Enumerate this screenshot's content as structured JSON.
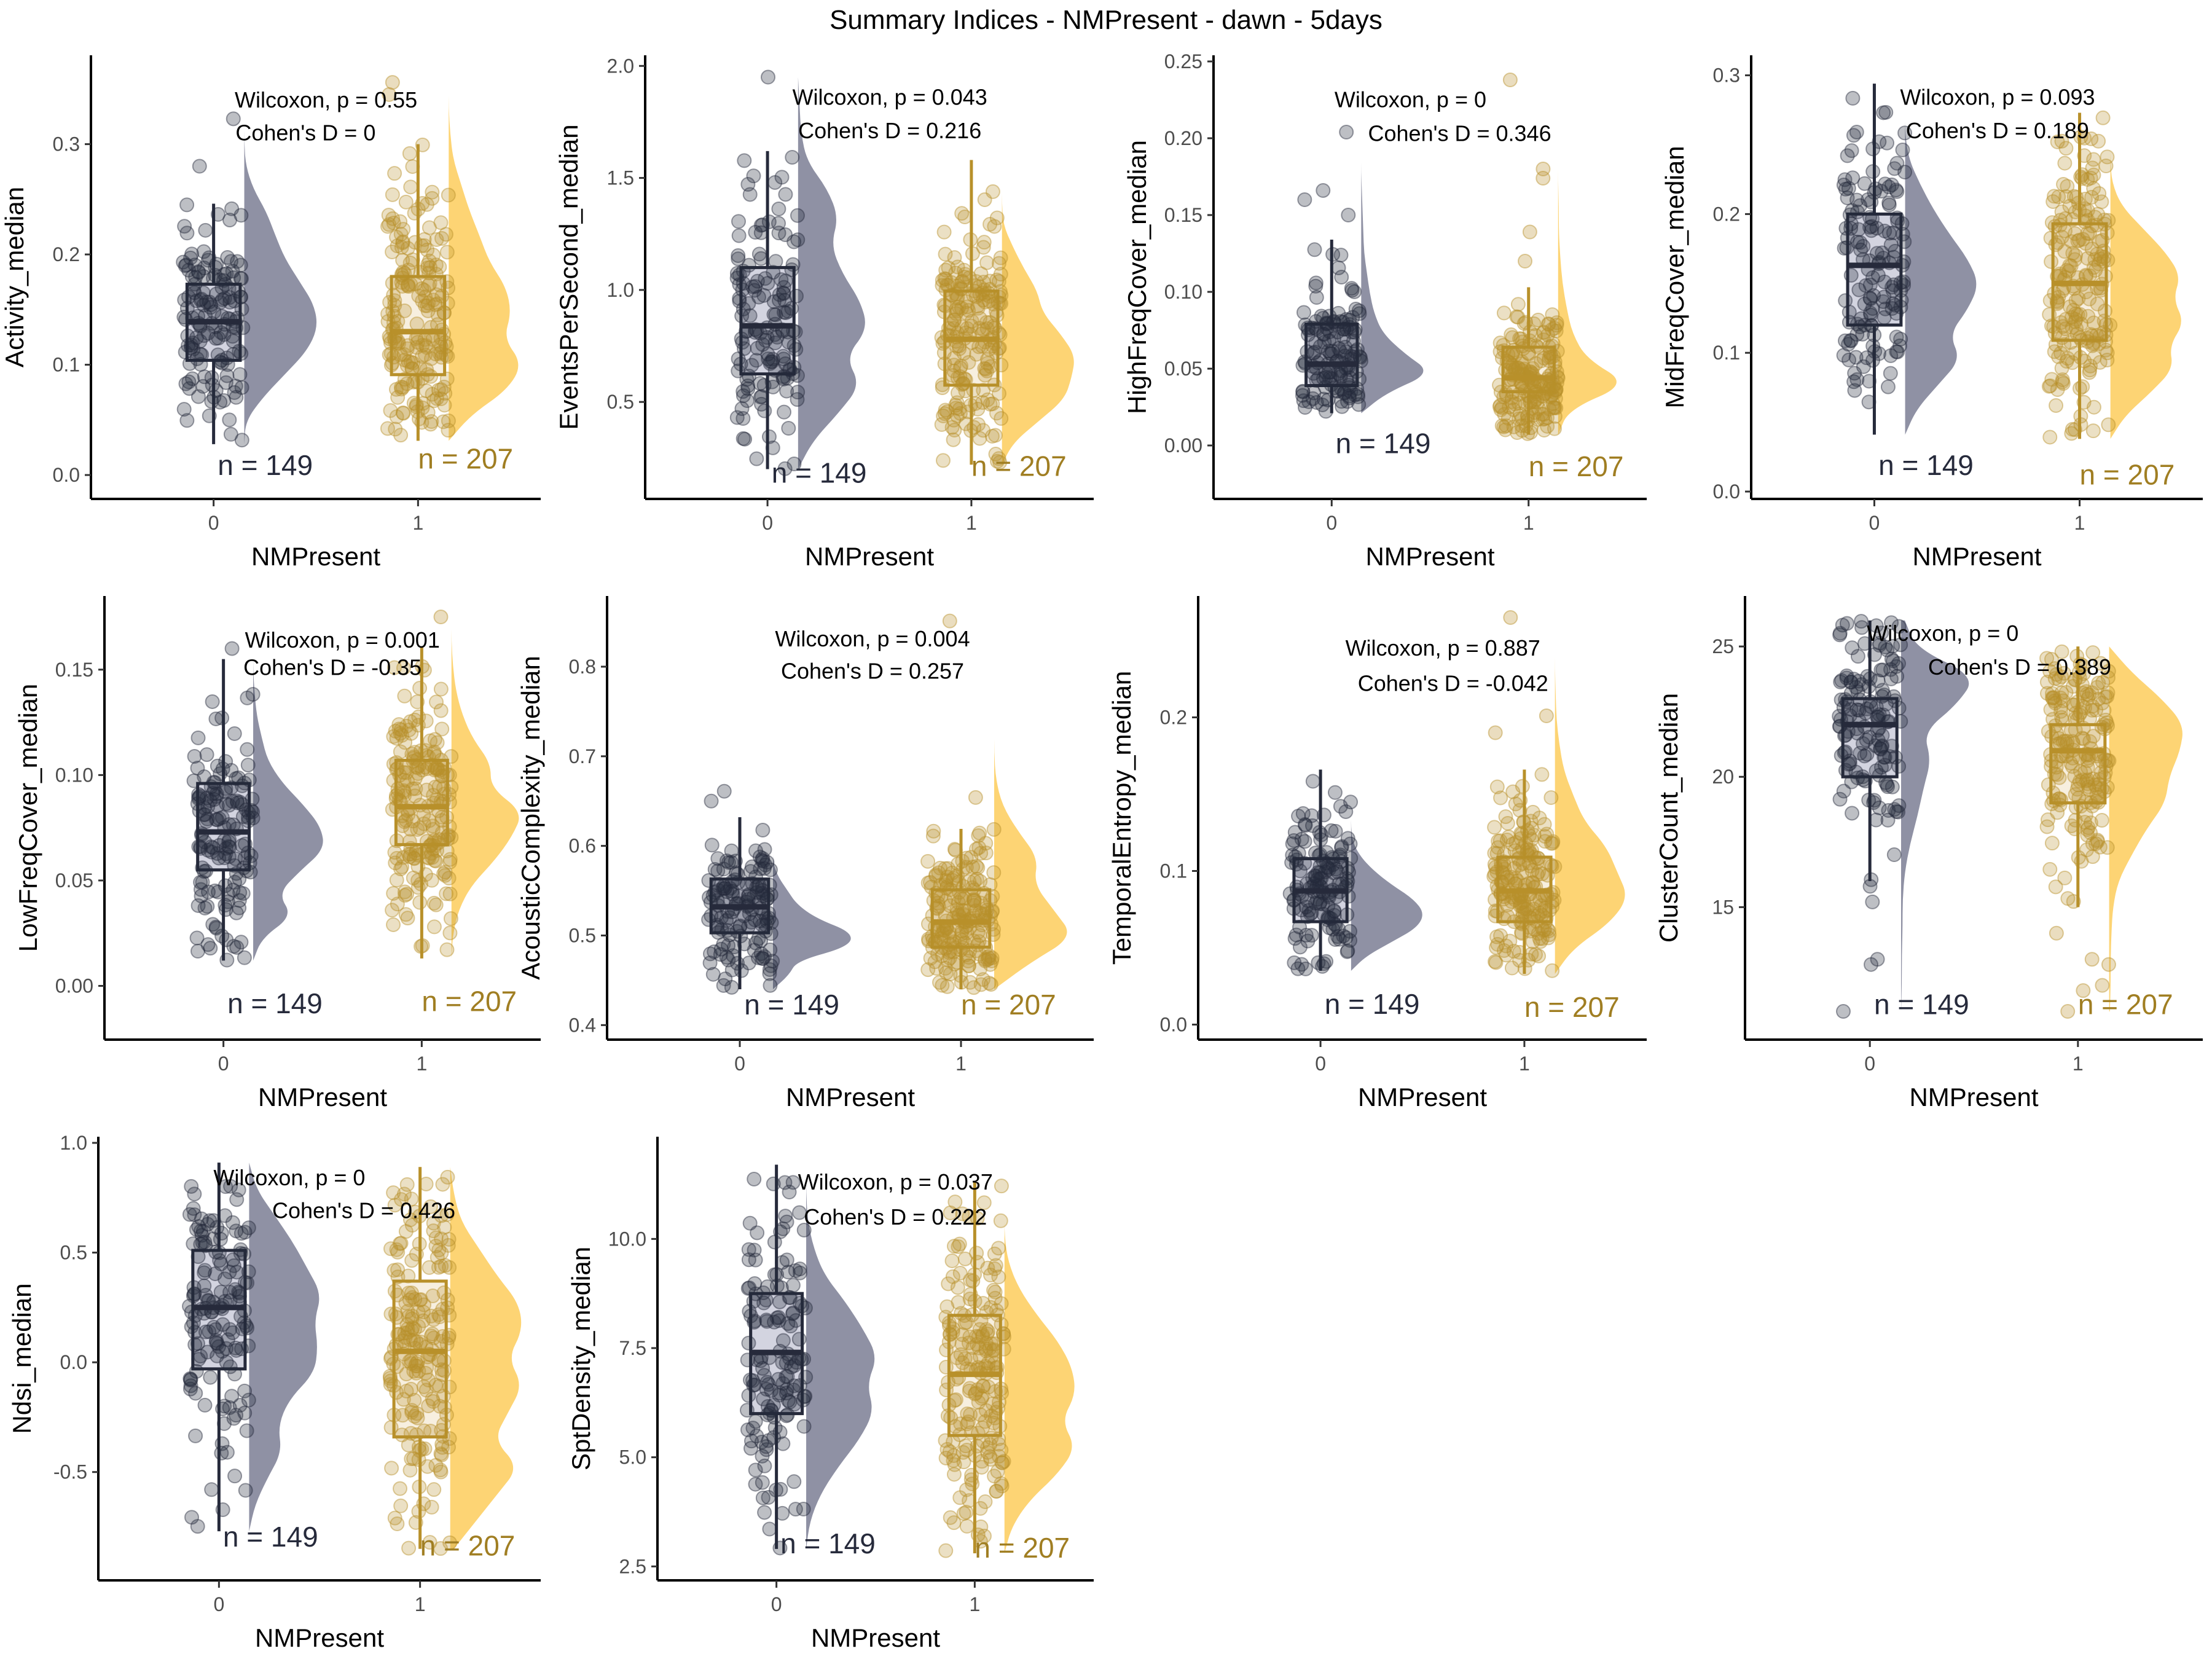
{
  "title": "Summary Indices - NMPresent - dawn - 5days",
  "colors": {
    "group0_line": "#262a3b",
    "group0_box_fill": "#d3d4e0",
    "group0_violin": "#8f91a4",
    "group0_point": "#262a3b",
    "group0_nlabel": "#262a3b",
    "group1_line": "#b8902a",
    "group1_box_fill": "#f7efdf",
    "group1_violin": "#fdd474",
    "group1_point": "#b8902a",
    "group1_nlabel": "#a07e22",
    "axis": "#000000",
    "tick_label": "#4d4d4d"
  },
  "chart_data": [
    {
      "type": "raincloud",
      "ylabel": "Activity_median",
      "xlabel": "NMPresent",
      "categories": [
        "0",
        "1"
      ],
      "ylim": [
        -0.015,
        0.375
      ],
      "yticks": [
        0.0,
        0.1,
        0.2,
        0.3
      ],
      "ytick_labels": [
        "0.0",
        "0.1",
        "0.2",
        "0.3"
      ],
      "wilcoxon_label": "Wilcoxon, p = 0.55",
      "cohens_label": "Cohen's D = 0",
      "annot_y": [
        0.34,
        0.31
      ],
      "annot_x": [
        0.55,
        0.45
      ],
      "groups": [
        {
          "name": "0",
          "n": 149,
          "n_label": "n = 149",
          "n_label_y": 0.0,
          "min": 0.028,
          "q1": 0.104,
          "median": 0.139,
          "q3": 0.173,
          "max": 0.246,
          "outliers": [
            0.28,
            0.323
          ],
          "density": [
            0.0,
            0.02,
            0.25,
            0.55,
            0.85,
            1.0,
            0.95,
            0.75,
            0.55,
            0.42,
            0.3,
            0.12,
            0.02,
            0.0,
            0.0
          ]
        },
        {
          "name": "1",
          "n": 207,
          "n_label": "n = 207",
          "n_label_y": 0.006,
          "min": 0.031,
          "q1": 0.091,
          "median": 0.13,
          "q3": 0.18,
          "max": 0.3,
          "outliers": [
            0.345,
            0.356
          ],
          "density": [
            0.0,
            0.3,
            0.8,
            1.0,
            0.75,
            0.85,
            0.78,
            0.55,
            0.42,
            0.28,
            0.17,
            0.06,
            0.02,
            0.0,
            0.0
          ]
        }
      ]
    },
    {
      "type": "raincloud",
      "ylabel": "EventsPerSecond_median",
      "xlabel": "NMPresent",
      "categories": [
        "0",
        "1"
      ],
      "ylim": [
        0.1,
        2.02
      ],
      "yticks": [
        0.5,
        1.0,
        1.5,
        2.0
      ],
      "ytick_labels": [
        "0.5",
        "1.0",
        "1.5",
        "2.0"
      ],
      "wilcoxon_label": "Wilcoxon, p = 0.043",
      "cohens_label": "Cohen's D = 0.216",
      "annot_y": [
        1.86,
        1.71
      ],
      "annot_x": [
        0.6,
        0.6
      ],
      "groups": [
        {
          "name": "0",
          "n": 149,
          "n_label": "n = 149",
          "n_label_y": 0.14,
          "min": 0.2,
          "q1": 0.625,
          "median": 0.84,
          "q3": 1.1,
          "max": 1.62,
          "outliers": [
            1.95
          ],
          "density": [
            0.0,
            0.2,
            0.55,
            0.85,
            0.65,
            0.95,
            0.85,
            0.6,
            0.45,
            0.55,
            0.4,
            0.12,
            0.04,
            0.02,
            0.0
          ]
        },
        {
          "name": "1",
          "n": 207,
          "n_label": "n = 207",
          "n_label_y": 0.17,
          "min": 0.22,
          "q1": 0.575,
          "median": 0.78,
          "q3": 0.995,
          "max": 1.58,
          "outliers": [],
          "density": [
            0.0,
            0.15,
            0.5,
            0.85,
            0.95,
            1.0,
            0.8,
            0.55,
            0.48,
            0.3,
            0.15,
            0.02,
            0.0,
            0.0,
            0.0
          ]
        }
      ]
    },
    {
      "type": "raincloud",
      "ylabel": "HighFreqCover_median",
      "xlabel": "NMPresent",
      "categories": [
        "0",
        "1"
      ],
      "ylim": [
        -0.03,
        0.25
      ],
      "yticks": [
        0.0,
        0.05,
        0.1,
        0.15,
        0.2,
        0.25
      ],
      "ytick_labels": [
        "0.00",
        "0.05",
        "0.10",
        "0.15",
        "0.20",
        "0.25"
      ],
      "wilcoxon_label": "Wilcoxon, p = 0",
      "cohens_label": "Cohen's D = 0.346",
      "annot_y": [
        0.225,
        0.203
      ],
      "annot_x": [
        0.4,
        0.65
      ],
      "groups": [
        {
          "name": "0",
          "n": 149,
          "n_label": "n = 149",
          "n_label_y": -0.005,
          "min": 0.021,
          "q1": 0.039,
          "median": 0.053,
          "q3": 0.079,
          "max": 0.134,
          "outliers": [
            0.15,
            0.16,
            0.166,
            0.204
          ],
          "density": [
            0.0,
            0.35,
            1.0,
            0.6,
            0.3,
            0.18,
            0.12,
            0.08,
            0.04,
            0.03,
            0.02,
            0.01,
            0.0,
            0.0,
            0.0
          ]
        },
        {
          "name": "1",
          "n": 207,
          "n_label": "n = 207",
          "n_label_y": -0.02,
          "min": 0.007,
          "q1": 0.035,
          "median": 0.044,
          "q3": 0.064,
          "max": 0.103,
          "outliers": [
            0.12,
            0.139,
            0.174,
            0.18,
            0.238
          ],
          "density": [
            0.0,
            0.15,
            1.0,
            0.4,
            0.2,
            0.12,
            0.06,
            0.03,
            0.01,
            0.01,
            0.0,
            0.0,
            0.0,
            0.0,
            0.0
          ]
        }
      ]
    },
    {
      "type": "raincloud",
      "ylabel": "MidFreqCover_median",
      "xlabel": "NMPresent",
      "categories": [
        "0",
        "1"
      ],
      "ylim": [
        0.0,
        0.31
      ],
      "yticks": [
        0.0,
        0.1,
        0.2,
        0.3
      ],
      "ytick_labels": [
        "0.0",
        "0.1",
        "0.2",
        "0.3"
      ],
      "wilcoxon_label": "Wilcoxon, p = 0.093",
      "cohens_label": "Cohen's D = 0.189",
      "annot_y": [
        0.284,
        0.26
      ],
      "annot_x": [
        0.6,
        0.6
      ],
      "groups": [
        {
          "name": "0",
          "n": 149,
          "n_label": "n = 149",
          "n_label_y": 0.012,
          "min": 0.041,
          "q1": 0.12,
          "median": 0.163,
          "q3": 0.2,
          "max": 0.294,
          "outliers": [],
          "density": [
            0.0,
            0.15,
            0.45,
            0.75,
            0.6,
            0.85,
            1.0,
            0.85,
            0.6,
            0.38,
            0.2,
            0.05,
            0.0,
            0.0,
            0.0
          ]
        },
        {
          "name": "1",
          "n": 207,
          "n_label": "n = 207",
          "n_label_y": 0.005,
          "min": 0.038,
          "q1": 0.109,
          "median": 0.15,
          "q3": 0.193,
          "max": 0.273,
          "outliers": [],
          "density": [
            0.0,
            0.2,
            0.55,
            0.85,
            0.8,
            1.0,
            0.85,
            0.95,
            0.75,
            0.45,
            0.15,
            0.02,
            0.0,
            0.0,
            0.0
          ]
        }
      ]
    },
    {
      "type": "raincloud",
      "ylabel": "LowFreqCover_median",
      "xlabel": "NMPresent",
      "categories": [
        "0",
        "1"
      ],
      "ylim": [
        -0.022,
        0.182
      ],
      "yticks": [
        0.0,
        0.05,
        0.1,
        0.15
      ],
      "ytick_labels": [
        "0.00",
        "0.05",
        "0.10",
        "0.15"
      ],
      "wilcoxon_label": "Wilcoxon, p = 0.001",
      "cohens_label": "Cohen's D = -0.35",
      "annot_y": [
        0.164,
        0.151
      ],
      "annot_x": [
        0.6,
        0.55
      ],
      "groups": [
        {
          "name": "0",
          "n": 149,
          "n_label": "n = 149",
          "n_label_y": -0.013,
          "min": 0.012,
          "q1": 0.055,
          "median": 0.073,
          "q3": 0.096,
          "max": 0.155,
          "outliers": [
            0.16
          ],
          "density": [
            0.0,
            0.12,
            0.55,
            0.35,
            0.65,
            1.0,
            0.95,
            0.7,
            0.4,
            0.2,
            0.12,
            0.05,
            0.02,
            0.0,
            0.0
          ]
        },
        {
          "name": "1",
          "n": 207,
          "n_label": "n = 207",
          "n_label_y": -0.012,
          "min": 0.013,
          "q1": 0.067,
          "median": 0.085,
          "q3": 0.107,
          "max": 0.161,
          "outliers": [
            0.175
          ],
          "density": [
            0.0,
            0.02,
            0.1,
            0.28,
            0.6,
            0.85,
            1.0,
            0.55,
            0.55,
            0.3,
            0.15,
            0.06,
            0.02,
            0.0,
            0.0
          ]
        }
      ]
    },
    {
      "type": "raincloud",
      "ylabel": "AcousticComplexity_median",
      "xlabel": "NMPresent",
      "categories": [
        "0",
        "1"
      ],
      "ylim": [
        0.392,
        0.872
      ],
      "yticks": [
        0.4,
        0.5,
        0.6,
        0.7,
        0.8
      ],
      "ytick_labels": [
        "0.4",
        "0.5",
        "0.6",
        "0.7",
        "0.8"
      ],
      "wilcoxon_label": "Wilcoxon, p = 0.004",
      "cohens_label": "Cohen's D = 0.257",
      "annot_y": [
        0.831,
        0.795
      ],
      "annot_x": [
        0.6,
        0.6
      ],
      "groups": [
        {
          "name": "0",
          "n": 149,
          "n_label": "n = 149",
          "n_label_y": 0.412,
          "min": 0.44,
          "q1": 0.503,
          "median": 0.532,
          "q3": 0.563,
          "max": 0.632,
          "outliers": [
            0.65,
            0.661
          ],
          "density": [
            0.0,
            0.2,
            0.3,
            0.95,
            1.0,
            0.55,
            0.3,
            0.18,
            0.06,
            0.0,
            0.0,
            0.0,
            0.0,
            0.0,
            0.0
          ]
        },
        {
          "name": "1",
          "n": 207,
          "n_label": "n = 207",
          "n_label_y": 0.412,
          "min": 0.44,
          "q1": 0.487,
          "median": 0.515,
          "q3": 0.551,
          "max": 0.619,
          "outliers": [
            0.654,
            0.851
          ],
          "density": [
            0.0,
            0.45,
            1.0,
            0.75,
            0.5,
            0.55,
            0.3,
            0.1,
            0.02,
            0.0,
            0.0,
            0.0,
            0.0,
            0.0,
            0.0
          ]
        }
      ]
    },
    {
      "type": "raincloud",
      "ylabel": "TemporalEntropy_median",
      "xlabel": "NMPresent",
      "categories": [
        "0",
        "1"
      ],
      "ylim": [
        -0.005,
        0.275
      ],
      "yticks": [
        0.0,
        0.1,
        0.2
      ],
      "ytick_labels": [
        "0.0",
        "0.1",
        "0.2"
      ],
      "wilcoxon_label": "Wilcoxon, p = 0.887",
      "cohens_label": "Cohen's D = -0.042",
      "annot_y": [
        0.245,
        0.222
      ],
      "annot_x": [
        0.6,
        0.65
      ],
      "groups": [
        {
          "name": "0",
          "n": 149,
          "n_label": "n = 149",
          "n_label_y": 0.007,
          "min": 0.035,
          "q1": 0.067,
          "median": 0.087,
          "q3": 0.108,
          "max": 0.166,
          "outliers": [],
          "density": [
            0.0,
            0.2,
            0.55,
            0.9,
            1.0,
            0.85,
            0.55,
            0.3,
            0.12,
            0.02,
            0.0,
            0.0,
            0.0,
            0.0,
            0.0
          ]
        },
        {
          "name": "1",
          "n": 207,
          "n_label": "n = 207",
          "n_label_y": 0.005,
          "min": 0.033,
          "q1": 0.067,
          "median": 0.087,
          "q3": 0.109,
          "max": 0.166,
          "outliers": [
            0.19,
            0.201,
            0.265
          ],
          "density": [
            0.0,
            0.25,
            0.75,
            1.0,
            0.85,
            0.7,
            0.4,
            0.25,
            0.12,
            0.06,
            0.02,
            0.01,
            0.0,
            0.0,
            0.0
          ]
        }
      ]
    },
    {
      "type": "raincloud",
      "ylabel": "ClusterCount_median",
      "xlabel": "NMPresent",
      "categories": [
        "0",
        "1"
      ],
      "ylim": [
        10.2,
        26.7
      ],
      "yticks": [
        15,
        20,
        25
      ],
      "ytick_labels": [
        "15",
        "20",
        "25"
      ],
      "wilcoxon_label": "Wilcoxon, p = 0",
      "cohens_label": "Cohen's D = 0.389",
      "annot_y": [
        25.5,
        24.2
      ],
      "annot_x": [
        0.35,
        0.72
      ],
      "groups": [
        {
          "name": "0",
          "n": 149,
          "n_label": "n = 149",
          "n_label_y": 10.9,
          "min": 16.0,
          "q1": 20.0,
          "median": 22.0,
          "q3": 23.0,
          "max": 26.0,
          "outliers": [
            11.0,
            12.8,
            13.0,
            15.2,
            15.8
          ],
          "density": [
            0.0,
            0.01,
            0.01,
            0.02,
            0.02,
            0.05,
            0.12,
            0.22,
            0.3,
            0.4,
            0.3,
            0.75,
            1.0,
            0.2,
            0.05
          ]
        },
        {
          "name": "1",
          "n": 207,
          "n_label": "n = 207",
          "n_label_y": 10.9,
          "min": 15.0,
          "q1": 19.0,
          "median": 21.0,
          "q3": 22.0,
          "max": 25.0,
          "outliers": [
            11.0,
            11.8,
            12.0,
            12.8,
            13.0,
            14.0
          ],
          "density": [
            0.01,
            0.02,
            0.02,
            0.03,
            0.05,
            0.12,
            0.3,
            0.5,
            0.75,
            0.8,
            0.95,
            1.0,
            0.7,
            0.3,
            0.0
          ]
        }
      ]
    },
    {
      "type": "raincloud",
      "ylabel": "Ndsi_median",
      "xlabel": "NMPresent",
      "categories": [
        "0",
        "1"
      ],
      "ylim": [
        -0.96,
        1.0
      ],
      "yticks": [
        -0.5,
        0.0,
        0.5,
        1.0
      ],
      "ytick_labels": [
        "-0.5",
        "0.0",
        "0.5",
        "1.0"
      ],
      "wilcoxon_label": "Wilcoxon, p = 0",
      "cohens_label": "Cohen's D = 0.426",
      "annot_y": [
        0.84,
        0.69
      ],
      "annot_x": [
        0.35,
        0.72
      ],
      "groups": [
        {
          "name": "0",
          "n": 149,
          "n_label": "n = 149",
          "n_label_y": -0.84,
          "min": -0.77,
          "q1": -0.03,
          "median": 0.25,
          "q3": 0.51,
          "max": 0.91,
          "outliers": [],
          "density": [
            0.0,
            0.08,
            0.25,
            0.45,
            0.4,
            0.55,
            0.9,
            0.95,
            0.9,
            1.0,
            0.8,
            0.6,
            0.35,
            0.1,
            0.0
          ]
        },
        {
          "name": "1",
          "n": 207,
          "n_label": "n = 207",
          "n_label_y": -0.88,
          "min": -0.85,
          "q1": -0.34,
          "median": 0.05,
          "q3": 0.37,
          "max": 0.89,
          "outliers": [],
          "density": [
            0.05,
            0.35,
            0.65,
            0.95,
            0.6,
            0.8,
            1.0,
            0.8,
            1.0,
            0.95,
            0.65,
            0.4,
            0.15,
            0.05,
            0.0
          ]
        }
      ]
    },
    {
      "type": "raincloud",
      "ylabel": "SptDensity_median",
      "xlabel": "NMPresent",
      "categories": [
        "0",
        "1"
      ],
      "ylim": [
        2.35,
        12.2
      ],
      "yticks": [
        2.5,
        5.0,
        7.5,
        10.0
      ],
      "ytick_labels": [
        "2.5",
        "5.0",
        "7.5",
        "10.0"
      ],
      "wilcoxon_label": "Wilcoxon, p = 0.037",
      "cohens_label": "Cohen's D = 0.222",
      "annot_y": [
        11.3,
        10.5
      ],
      "annot_x": [
        0.6,
        0.6
      ],
      "groups": [
        {
          "name": "0",
          "n": 149,
          "n_label": "n = 149",
          "n_label_y": 2.8,
          "min": 2.9,
          "q1": 6.0,
          "median": 7.4,
          "q3": 8.75,
          "max": 11.7,
          "outliers": [],
          "density": [
            0.0,
            0.05,
            0.2,
            0.45,
            0.75,
            0.95,
            0.85,
            1.0,
            0.8,
            0.55,
            0.25,
            0.1,
            0.02,
            0.0,
            0.0
          ]
        },
        {
          "name": "1",
          "n": 207,
          "n_label": "n = 207",
          "n_label_y": 2.7,
          "min": 2.8,
          "q1": 5.5,
          "median": 6.9,
          "q3": 8.25,
          "max": 11.3,
          "outliers": [],
          "density": [
            0.0,
            0.1,
            0.35,
            0.75,
            1.0,
            0.8,
            1.0,
            0.95,
            0.75,
            0.45,
            0.2,
            0.05,
            0.0,
            0.0,
            0.0
          ]
        }
      ]
    }
  ]
}
